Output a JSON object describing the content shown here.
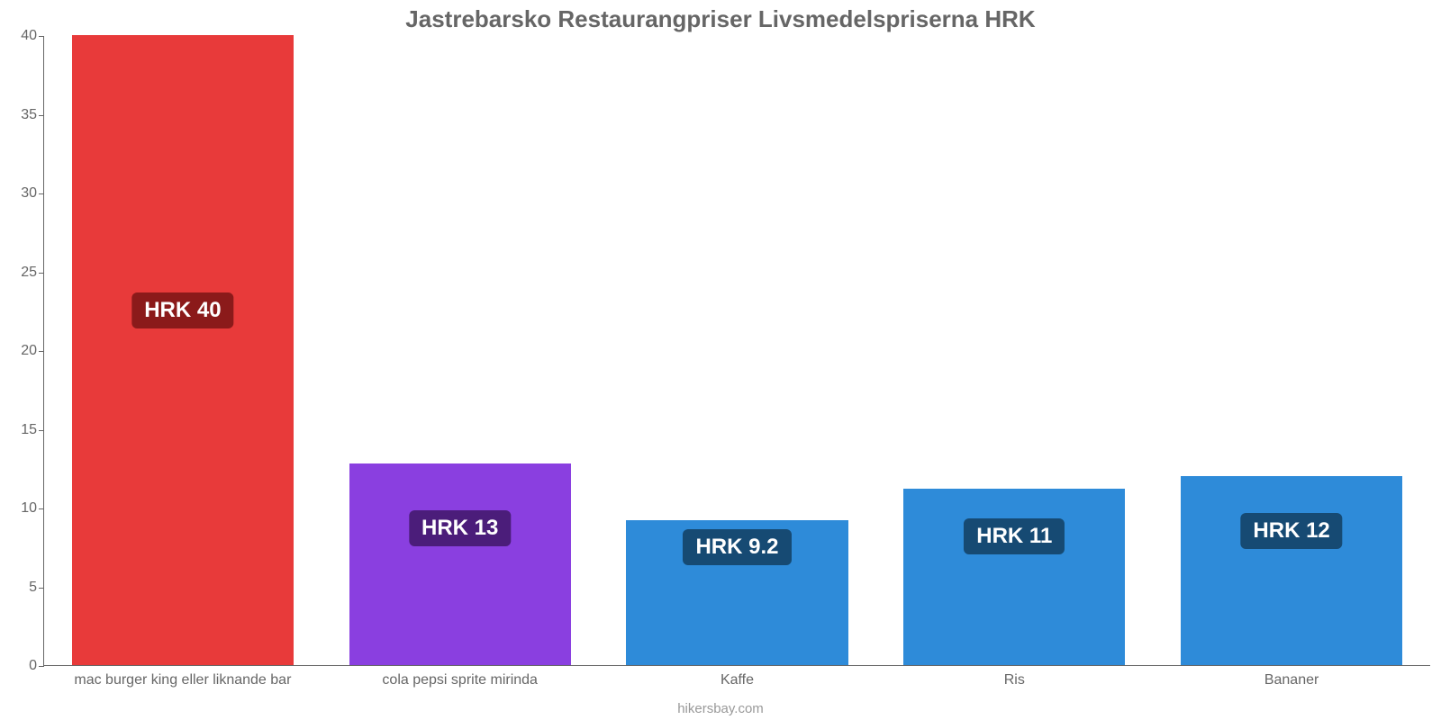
{
  "chart": {
    "type": "bar",
    "title": "Jastrebarsko Restaurangpriser Livsmedelspriserna HRK",
    "title_color": "#666666",
    "title_fontsize": 26,
    "background_color": "#ffffff",
    "axis_color": "#666666",
    "tick_label_color": "#666666",
    "tick_fontsize": 16,
    "xlabel_fontsize": 16,
    "badge_fontsize": 24,
    "badge_text_color": "#ffffff",
    "ylim_min": 0,
    "ylim_max": 40,
    "ytick_step": 5,
    "yticks": [
      {
        "value": 0,
        "label": "0"
      },
      {
        "value": 5,
        "label": "5"
      },
      {
        "value": 10,
        "label": "10"
      },
      {
        "value": 15,
        "label": "15"
      },
      {
        "value": 20,
        "label": "20"
      },
      {
        "value": 25,
        "label": "25"
      },
      {
        "value": 30,
        "label": "30"
      },
      {
        "value": 35,
        "label": "35"
      },
      {
        "value": 40,
        "label": "40"
      }
    ],
    "bar_width_pct": 80,
    "categories": [
      {
        "label": "mac burger king eller liknande bar",
        "value": 40,
        "value_label": "HRK 40",
        "bar_color": "#e83a3a",
        "badge_bg": "#8b1a1a",
        "badge_center_value": 22.5
      },
      {
        "label": "cola pepsi sprite mirinda",
        "value": 12.8,
        "value_label": "HRK 13",
        "bar_color": "#8a3fe0",
        "badge_bg": "#4b1d7a",
        "badge_center_value": 8.7
      },
      {
        "label": "Kaffe",
        "value": 9.2,
        "value_label": "HRK 9.2",
        "bar_color": "#2e8bd9",
        "badge_bg": "#164a73",
        "badge_center_value": 7.5
      },
      {
        "label": "Ris",
        "value": 11.2,
        "value_label": "HRK 11",
        "bar_color": "#2e8bd9",
        "badge_bg": "#164a73",
        "badge_center_value": 8.2
      },
      {
        "label": "Bananer",
        "value": 12,
        "value_label": "HRK 12",
        "bar_color": "#2e8bd9",
        "badge_bg": "#164a73",
        "badge_center_value": 8.5
      }
    ],
    "credit": "hikersbay.com",
    "credit_color": "#999999"
  }
}
